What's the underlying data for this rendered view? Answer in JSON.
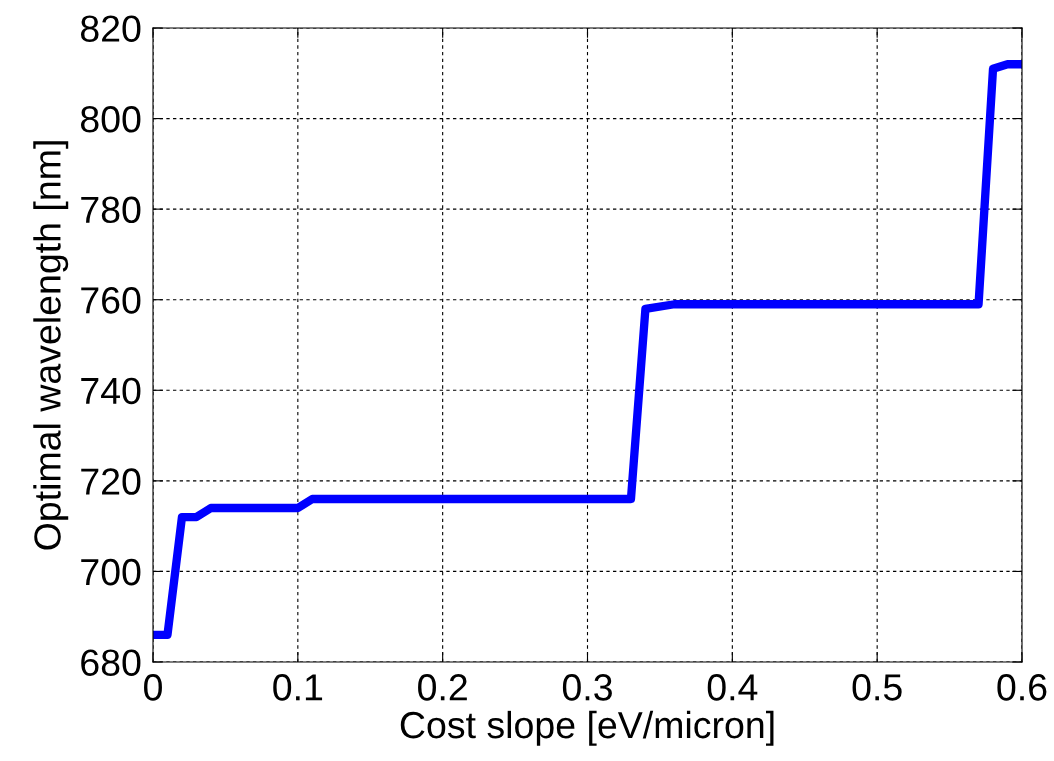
{
  "chart_data": {
    "type": "line",
    "xlabel": "Cost slope [eV/micron]",
    "ylabel": "Optimal wavelength [nm]",
    "x": [
      0,
      0.01,
      0.02,
      0.03,
      0.04,
      0.1,
      0.11,
      0.33,
      0.34,
      0.36,
      0.57,
      0.58,
      0.59,
      0.6
    ],
    "series": [
      {
        "color": "#0000ff",
        "values": [
          686,
          686,
          712,
          712,
          714,
          714,
          716,
          716,
          758,
          759,
          759,
          811,
          812,
          812
        ]
      }
    ],
    "xlim": [
      0,
      0.6
    ],
    "xticks": [
      0,
      0.1,
      0.2,
      0.3,
      0.4,
      0.5,
      0.6
    ],
    "ylim": [
      680,
      820
    ],
    "yticks": [
      680,
      700,
      720,
      740,
      760,
      780,
      800,
      820
    ],
    "grid": true,
    "line_style": "solid",
    "marker": "none"
  }
}
